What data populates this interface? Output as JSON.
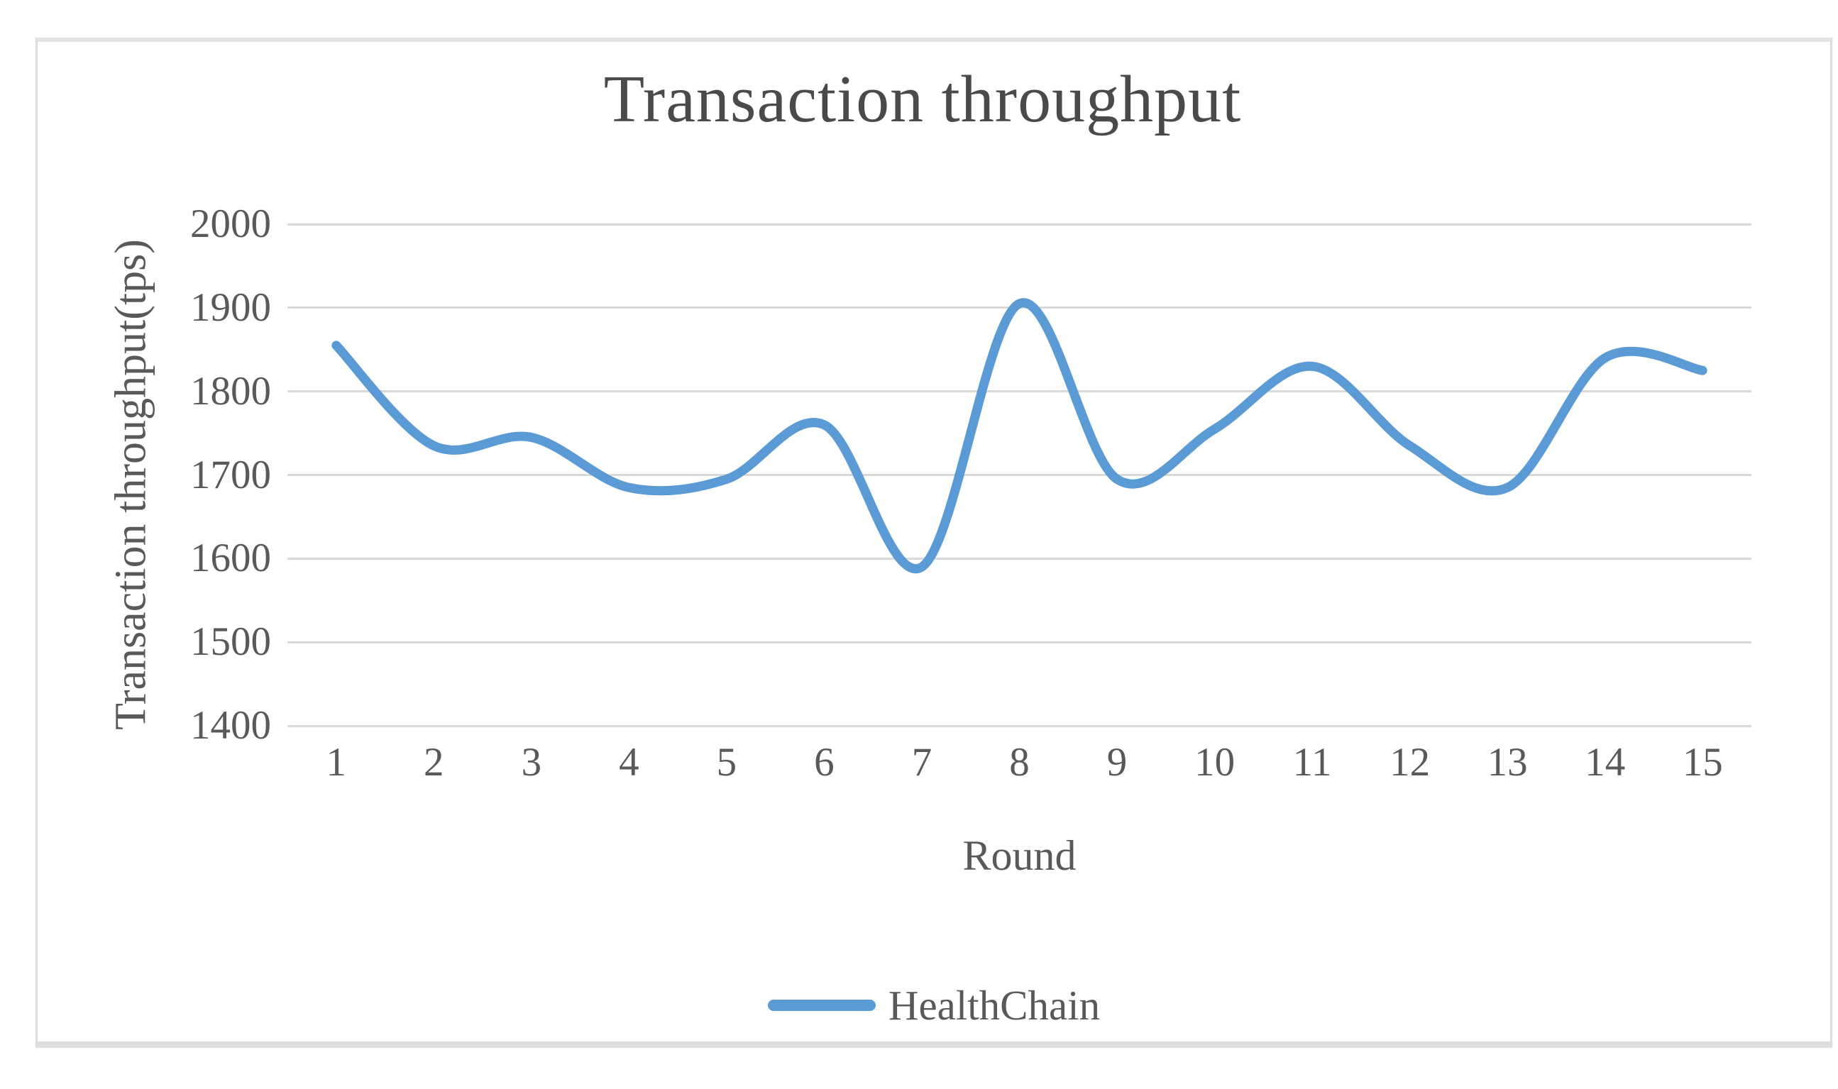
{
  "chart_data": {
    "type": "line",
    "title": "Transaction throughput",
    "xlabel": "Round",
    "ylabel": "Transaction throughput(tps)",
    "categories": [
      "1",
      "2",
      "3",
      "4",
      "5",
      "6",
      "7",
      "8",
      "9",
      "10",
      "11",
      "12",
      "13",
      "14",
      "15"
    ],
    "series": [
      {
        "name": "HealthChain",
        "color": "#5B9BD5",
        "values": [
          1855,
          1735,
          1745,
          1685,
          1695,
          1760,
          1590,
          1905,
          1695,
          1755,
          1830,
          1735,
          1685,
          1840,
          1825
        ]
      }
    ],
    "ylim": [
      1400,
      2000
    ],
    "yticks": [
      2000,
      1900,
      1800,
      1700,
      1600,
      1500,
      1400
    ],
    "ytick_step": 100,
    "grid": "horizontal-only",
    "line_smooth": true,
    "legend_position": "bottom"
  },
  "colors": {
    "accent": "#5B9BD5",
    "gridline": "#D9D9D9",
    "axis_text": "#595959",
    "title_text": "#4A4A4A",
    "frame_border": "#DCDCDC"
  }
}
